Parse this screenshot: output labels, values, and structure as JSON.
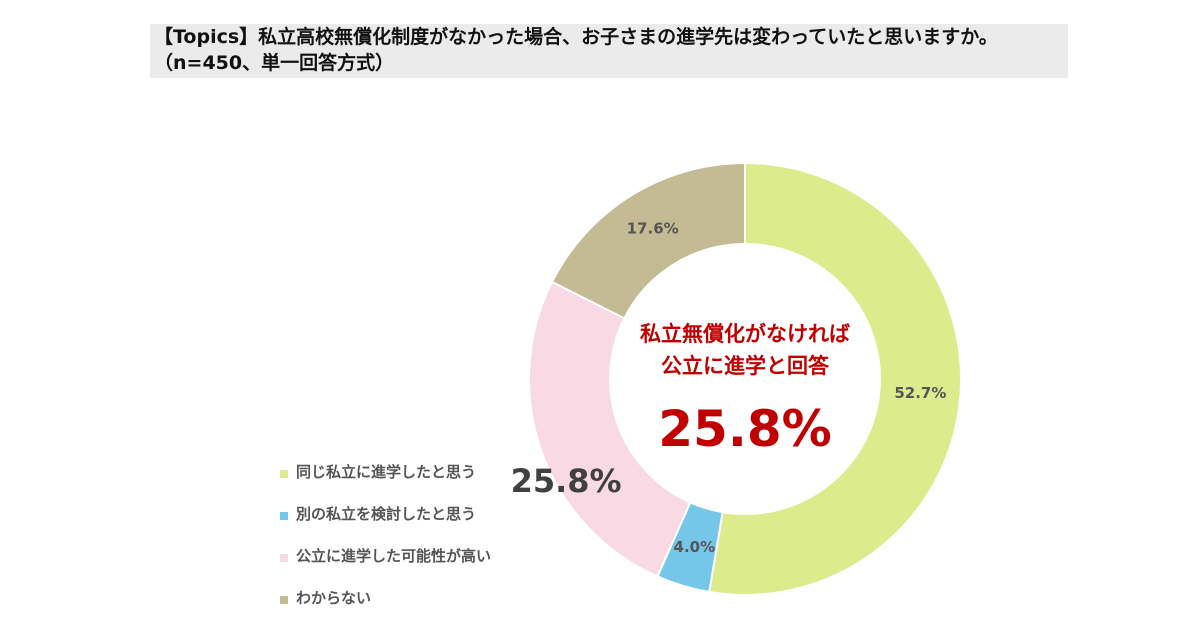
{
  "title": "【Topics】私立高校無償化制度がなかった場合、お子さまの進学先は変わっていたと思いますか。（n=450、単一回答方式）",
  "center": {
    "line1": "私立無償化がなければ",
    "line2": "公立に進学と回答",
    "value": "25.8%"
  },
  "chart_data": {
    "type": "pie",
    "donut": true,
    "title": "【Topics】私立高校無償化制度がなかった場合、お子さまの進学先は変わっていたと思いますか。（n=450、単一回答方式）",
    "categories": [
      "同じ私立に進学したと思う",
      "別の私立を検討したと思う",
      "公立に進学した可能性が高い",
      "わからない"
    ],
    "values": [
      52.7,
      4.0,
      25.8,
      17.6
    ],
    "labels": [
      "52.7%",
      "4.0%",
      "25.8%",
      "17.6%"
    ],
    "colors": [
      "#dcec8c",
      "#74c7e8",
      "#f8d9e4",
      "#c4bb95"
    ],
    "legend": "left-bottom"
  }
}
